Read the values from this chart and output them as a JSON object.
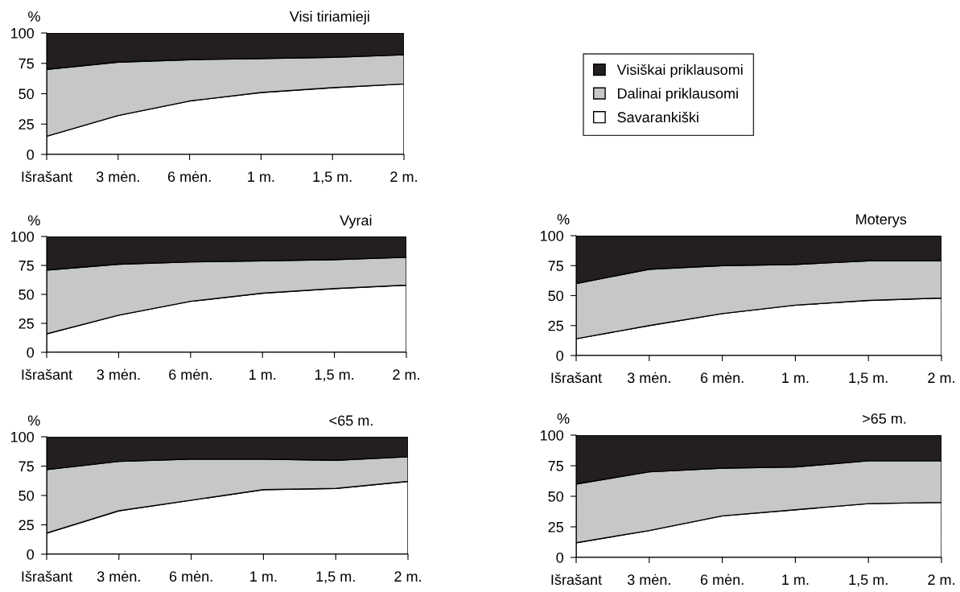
{
  "chart_data": [
    {
      "type": "area",
      "title": "Visi tiriamieji",
      "ylabel": "%",
      "stacked": true,
      "legend": "right",
      "categories": [
        "Išrašant",
        "3 mėn.",
        "6 mėn.",
        "1 m.",
        "1,5 m.",
        "2 m."
      ],
      "ylim": [
        0,
        100
      ],
      "yticks": [
        0,
        25,
        50,
        75,
        100
      ],
      "series": [
        {
          "name": "Savarankiški",
          "color": "#ffffff",
          "values": [
            15,
            32,
            44,
            51,
            55,
            58
          ]
        },
        {
          "name": "Dalinai priklausomi",
          "color": "#c6c7c9",
          "values": [
            55,
            44,
            34,
            28,
            25,
            24
          ]
        },
        {
          "name": "Visiškai priklausomi",
          "color": "#231f20",
          "values": [
            30,
            24,
            22,
            21,
            20,
            18
          ]
        }
      ]
    },
    {
      "type": "area",
      "title": "Vyrai",
      "ylabel": "%",
      "stacked": true,
      "categories": [
        "Išrašant",
        "3 mėn.",
        "6 mėn.",
        "1 m.",
        "1,5 m.",
        "2 m."
      ],
      "ylim": [
        0,
        100
      ],
      "yticks": [
        0,
        25,
        50,
        75,
        100
      ],
      "series": [
        {
          "color": "#ffffff",
          "values": [
            16,
            32,
            44,
            51,
            55,
            58
          ]
        },
        {
          "color": "#c6c7c9",
          "values": [
            55,
            44,
            34,
            28,
            25,
            24
          ]
        },
        {
          "color": "#231f20",
          "values": [
            29,
            24,
            22,
            21,
            20,
            18
          ]
        }
      ]
    },
    {
      "type": "area",
      "title": "Moterys",
      "ylabel": "%",
      "stacked": true,
      "categories": [
        "Išrašant",
        "3 mėn.",
        "6 mėn.",
        "1 m.",
        "1,5 m.",
        "2 m."
      ],
      "ylim": [
        0,
        100
      ],
      "yticks": [
        0,
        25,
        50,
        75,
        100
      ],
      "series": [
        {
          "color": "#ffffff",
          "values": [
            14,
            25,
            35,
            42,
            46,
            48
          ]
        },
        {
          "color": "#c6c7c9",
          "values": [
            46,
            47,
            40,
            34,
            33,
            31
          ]
        },
        {
          "color": "#231f20",
          "values": [
            40,
            28,
            25,
            24,
            21,
            21
          ]
        }
      ]
    },
    {
      "type": "area",
      "title": "<65 m.",
      "ylabel": "%",
      "stacked": true,
      "categories": [
        "Išrašant",
        "3 mėn.",
        "6 mėn.",
        "1 m.",
        "1,5 m.",
        "2 m."
      ],
      "ylim": [
        0,
        100
      ],
      "yticks": [
        0,
        25,
        50,
        75,
        100
      ],
      "series": [
        {
          "color": "#ffffff",
          "values": [
            18,
            37,
            46,
            55,
            56,
            62
          ]
        },
        {
          "color": "#c6c7c9",
          "values": [
            54,
            42,
            35,
            26,
            24,
            21
          ]
        },
        {
          "color": "#231f20",
          "values": [
            28,
            21,
            19,
            19,
            20,
            17
          ]
        }
      ]
    },
    {
      "type": "area",
      "title": ">65 m.",
      "ylabel": "%",
      "stacked": true,
      "categories": [
        "Išrašant",
        "3 mėn.",
        "6 mėn.",
        "1 m.",
        "1,5 m.",
        "2 m."
      ],
      "ylim": [
        0,
        100
      ],
      "yticks": [
        0,
        25,
        50,
        75,
        100
      ],
      "series": [
        {
          "color": "#ffffff",
          "values": [
            12,
            22,
            34,
            39,
            44,
            45
          ]
        },
        {
          "color": "#c6c7c9",
          "values": [
            48,
            48,
            39,
            35,
            35,
            34
          ]
        },
        {
          "color": "#231f20",
          "values": [
            40,
            30,
            27,
            26,
            21,
            21
          ]
        }
      ]
    }
  ]
}
